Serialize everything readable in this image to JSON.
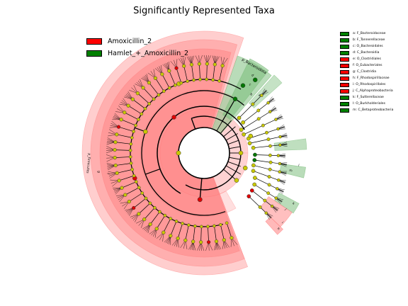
{
  "title": "Significantly Represented Taxa",
  "legend_groups": [
    {
      "label": "Amoxicillin_2",
      "color": "#ff0000"
    },
    {
      "label": "Hamlet_+_Amoxicillin_2",
      "color": "#008000"
    }
  ],
  "colors": {
    "amox_shade": "#ff7f7f",
    "hamlet_shade": "#7fbf7f",
    "node_default": "#c8c800",
    "node_amox": "#dd0000",
    "node_hamlet": "#007700"
  },
  "taxa_legend": [
    {
      "label": "a: F_Bacteroidaceae",
      "color": "#008000"
    },
    {
      "label": "b: F_Tannerellaceae",
      "color": "#008000"
    },
    {
      "label": "c: O_Bacteroidales",
      "color": "#008000"
    },
    {
      "label": "d: C_Bacteroidia",
      "color": "#008000"
    },
    {
      "label": "e: O_Clostridiales",
      "color": "#ff0000"
    },
    {
      "label": "f: O_Eubacteriales",
      "color": "#ff0000"
    },
    {
      "label": "g: C_Clostridia",
      "color": "#ff0000"
    },
    {
      "label": "h: F_Rhodospirillaceae",
      "color": "#ff0000"
    },
    {
      "label": "i: O_Rhodospirillales",
      "color": "#ff0000"
    },
    {
      "label": "j: C_Alphaproteobacteria",
      "color": "#ff0000"
    },
    {
      "label": "k: F_Sutterellaceae",
      "color": "#008000"
    },
    {
      "label": "l: O_Burkholderiales",
      "color": "#008000"
    },
    {
      "label": "m: C_Betaproteobacteria",
      "color": "#008000"
    }
  ],
  "ring_labels": [
    "p_Bacteroidota",
    "d",
    "c",
    "b",
    "a",
    "p_Firmicutes",
    "g",
    "f",
    "e",
    "j",
    "i",
    "h",
    "m",
    "l",
    "k"
  ]
}
